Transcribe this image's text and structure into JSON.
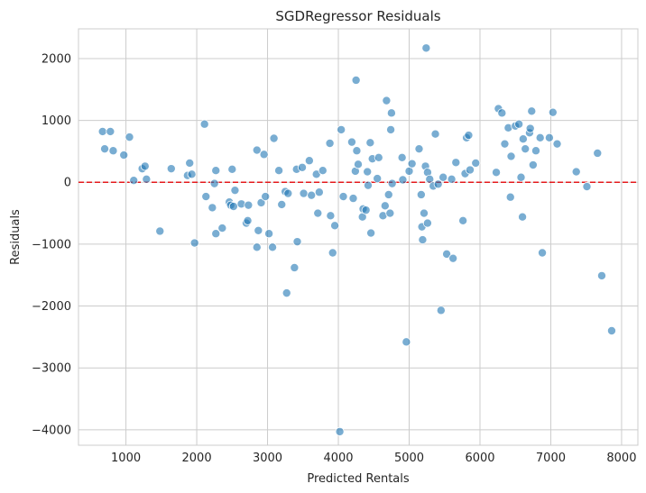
{
  "chart_data": {
    "type": "scatter",
    "title": "SGDRegressor Residuals",
    "xlabel": "Predicted Rentals",
    "ylabel": "Residuals",
    "xlim": [
      330,
      8230
    ],
    "ylim": [
      -4250,
      2480
    ],
    "xticks": [
      1000,
      2000,
      3000,
      4000,
      5000,
      6000,
      7000,
      8000
    ],
    "yticks": [
      -4000,
      -3000,
      -2000,
      -1000,
      0,
      1000,
      2000
    ],
    "grid": true,
    "reference_line": {
      "y": 0,
      "style": "dashed",
      "color": "#e41a1c"
    },
    "marker_color": "#1f77b4",
    "points": [
      [
        670,
        820
      ],
      [
        700,
        540
      ],
      [
        780,
        820
      ],
      [
        820,
        510
      ],
      [
        970,
        440
      ],
      [
        1050,
        730
      ],
      [
        1110,
        30
      ],
      [
        1230,
        220
      ],
      [
        1270,
        260
      ],
      [
        1290,
        50
      ],
      [
        1480,
        -790
      ],
      [
        1640,
        220
      ],
      [
        1870,
        110
      ],
      [
        1900,
        310
      ],
      [
        1930,
        130
      ],
      [
        1970,
        -980
      ],
      [
        2110,
        940
      ],
      [
        2130,
        -230
      ],
      [
        2220,
        -410
      ],
      [
        2250,
        -20
      ],
      [
        2270,
        190
      ],
      [
        2270,
        -830
      ],
      [
        2360,
        -740
      ],
      [
        2460,
        -320
      ],
      [
        2480,
        -370
      ],
      [
        2500,
        210
      ],
      [
        2520,
        -390
      ],
      [
        2540,
        -130
      ],
      [
        2630,
        -350
      ],
      [
        2700,
        -660
      ],
      [
        2720,
        -620
      ],
      [
        2730,
        -370
      ],
      [
        2850,
        520
      ],
      [
        2850,
        -1050
      ],
      [
        2870,
        -780
      ],
      [
        2910,
        -330
      ],
      [
        2950,
        450
      ],
      [
        2970,
        -230
      ],
      [
        3020,
        -830
      ],
      [
        3070,
        -1050
      ],
      [
        3090,
        710
      ],
      [
        3160,
        190
      ],
      [
        3200,
        -360
      ],
      [
        3250,
        -150
      ],
      [
        3270,
        -1790
      ],
      [
        3290,
        -180
      ],
      [
        3380,
        -1380
      ],
      [
        3410,
        210
      ],
      [
        3420,
        -960
      ],
      [
        3490,
        240
      ],
      [
        3510,
        -180
      ],
      [
        3590,
        350
      ],
      [
        3620,
        -210
      ],
      [
        3690,
        130
      ],
      [
        3710,
        -500
      ],
      [
        3730,
        -160
      ],
      [
        3780,
        190
      ],
      [
        3880,
        630
      ],
      [
        3890,
        -540
      ],
      [
        3920,
        -1140
      ],
      [
        3950,
        -700
      ],
      [
        4020,
        -4030
      ],
      [
        4040,
        850
      ],
      [
        4070,
        -230
      ],
      [
        4190,
        650
      ],
      [
        4210,
        -260
      ],
      [
        4240,
        180
      ],
      [
        4250,
        1650
      ],
      [
        4260,
        510
      ],
      [
        4280,
        290
      ],
      [
        4340,
        -560
      ],
      [
        4350,
        -430
      ],
      [
        4390,
        -450
      ],
      [
        4410,
        170
      ],
      [
        4420,
        -50
      ],
      [
        4450,
        640
      ],
      [
        4460,
        -820
      ],
      [
        4480,
        380
      ],
      [
        4550,
        60
      ],
      [
        4570,
        400
      ],
      [
        4630,
        -540
      ],
      [
        4660,
        -380
      ],
      [
        4680,
        1320
      ],
      [
        4710,
        -200
      ],
      [
        4730,
        -500
      ],
      [
        4740,
        850
      ],
      [
        4750,
        1120
      ],
      [
        4760,
        -20
      ],
      [
        4900,
        400
      ],
      [
        4910,
        40
      ],
      [
        4960,
        -2580
      ],
      [
        5000,
        180
      ],
      [
        5040,
        300
      ],
      [
        5140,
        540
      ],
      [
        5170,
        -200
      ],
      [
        5180,
        -720
      ],
      [
        5190,
        -930
      ],
      [
        5210,
        -500
      ],
      [
        5230,
        260
      ],
      [
        5240,
        2170
      ],
      [
        5260,
        160
      ],
      [
        5260,
        -660
      ],
      [
        5290,
        50
      ],
      [
        5340,
        -60
      ],
      [
        5370,
        780
      ],
      [
        5410,
        -30
      ],
      [
        5450,
        -2070
      ],
      [
        5480,
        80
      ],
      [
        5530,
        -1160
      ],
      [
        5600,
        50
      ],
      [
        5620,
        -1230
      ],
      [
        5660,
        320
      ],
      [
        5760,
        -620
      ],
      [
        5790,
        140
      ],
      [
        5810,
        720
      ],
      [
        5840,
        760
      ],
      [
        5860,
        200
      ],
      [
        5940,
        310
      ],
      [
        6230,
        160
      ],
      [
        6260,
        1190
      ],
      [
        6310,
        1120
      ],
      [
        6350,
        620
      ],
      [
        6400,
        880
      ],
      [
        6430,
        -240
      ],
      [
        6440,
        420
      ],
      [
        6500,
        910
      ],
      [
        6550,
        940
      ],
      [
        6580,
        80
      ],
      [
        6600,
        -560
      ],
      [
        6610,
        700
      ],
      [
        6640,
        540
      ],
      [
        6700,
        800
      ],
      [
        6710,
        870
      ],
      [
        6730,
        1150
      ],
      [
        6750,
        280
      ],
      [
        6790,
        510
      ],
      [
        6850,
        720
      ],
      [
        6880,
        -1140
      ],
      [
        6980,
        720
      ],
      [
        7030,
        1130
      ],
      [
        7090,
        620
      ],
      [
        7360,
        170
      ],
      [
        7510,
        -70
      ],
      [
        7660,
        470
      ],
      [
        7720,
        -1510
      ],
      [
        7860,
        -2400
      ]
    ]
  }
}
